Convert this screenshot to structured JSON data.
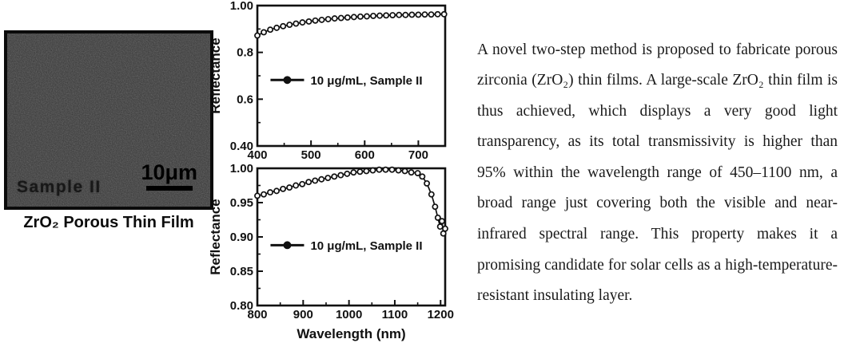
{
  "micrograph": {
    "sample_label": "Sample II",
    "scale_bar_label": "10μm",
    "caption": "ZrO₂ Porous Thin Film"
  },
  "text_panel": {
    "paragraph": "A novel two-step method is proposed to fabricate porous zirconia (ZrO₂) thin films. A large-scale ZrO₂ thin film is thus achieved, which displays a very good light transparency, as its total transmissivity is higher than 95% within the wavelength range of 450–1100 nm, a broad range just covering both the visible and near-infrared spectral range. This property makes it a promising candidate for solar cells as a high-temperature-resistant insulating layer."
  },
  "colors": {
    "ink": "#111111",
    "marker_fill": "#ffffff",
    "micrograph_bg": "#353535"
  },
  "chart_data": [
    {
      "type": "line",
      "title": "",
      "xlabel": "",
      "ylabel": "Reflectance",
      "legend": "10 μg/mL, Sample II",
      "legend_pos": {
        "fx": 0.07,
        "fy": 0.53
      },
      "xlim": [
        400,
        750
      ],
      "ylim": [
        0.4,
        1.0
      ],
      "xtick_values": [
        400,
        500,
        600,
        700
      ],
      "xtick_labels": [
        "400",
        "500",
        "600",
        "700"
      ],
      "xminor": [
        450,
        550,
        650,
        750
      ],
      "ytick_values": [
        1.0,
        0.8,
        0.6,
        0.4
      ],
      "ytick_labels": [
        "1.00",
        "0.8",
        "0.6",
        "0.40"
      ],
      "yminor": [
        0.9,
        0.7,
        0.5
      ],
      "grid": false,
      "series": [
        {
          "name": "10 μg/mL, Sample II",
          "x": [
            400,
            412,
            424,
            436,
            448,
            460,
            472,
            484,
            496,
            508,
            520,
            532,
            544,
            556,
            568,
            580,
            592,
            604,
            616,
            628,
            640,
            652,
            664,
            676,
            688,
            700,
            712,
            724,
            736,
            748
          ],
          "y": [
            0.872,
            0.886,
            0.897,
            0.905,
            0.912,
            0.918,
            0.923,
            0.928,
            0.932,
            0.936,
            0.939,
            0.942,
            0.945,
            0.947,
            0.949,
            0.951,
            0.953,
            0.954,
            0.956,
            0.957,
            0.958,
            0.959,
            0.96,
            0.96,
            0.961,
            0.961,
            0.962,
            0.962,
            0.963,
            0.963
          ]
        }
      ]
    },
    {
      "type": "line",
      "title": "",
      "xlabel": "Wavelength (nm)",
      "ylabel": "Reflectance",
      "legend": "10 μg/mL, Sample II",
      "legend_pos": {
        "fx": 0.07,
        "fy": 0.56
      },
      "xlim": [
        800,
        1210
      ],
      "ylim": [
        0.8,
        1.0
      ],
      "xtick_values": [
        800,
        900,
        1000,
        1100,
        1200
      ],
      "xtick_labels": [
        "800",
        "900",
        "1000",
        "1100",
        "1200"
      ],
      "xminor": [
        850,
        950,
        1050,
        1150
      ],
      "ytick_values": [
        1.0,
        0.95,
        0.9,
        0.85,
        0.8
      ],
      "ytick_labels": [
        "1.00",
        "0.95",
        "0.90",
        "0.85",
        "0.80"
      ],
      "yminor": [
        0.975,
        0.925,
        0.875,
        0.825
      ],
      "grid": false,
      "series": [
        {
          "name": "10 μg/mL, Sample II",
          "x": [
            800,
            814,
            828,
            842,
            856,
            870,
            884,
            898,
            912,
            926,
            940,
            954,
            968,
            982,
            996,
            1010,
            1024,
            1038,
            1052,
            1066,
            1080,
            1094,
            1108,
            1122,
            1136,
            1150,
            1160,
            1170,
            1180,
            1188,
            1194,
            1199,
            1203,
            1206,
            1210
          ],
          "y": [
            0.96,
            0.962,
            0.965,
            0.967,
            0.97,
            0.972,
            0.975,
            0.977,
            0.98,
            0.982,
            0.984,
            0.986,
            0.988,
            0.99,
            0.992,
            0.994,
            0.995,
            0.996,
            0.997,
            0.998,
            0.998,
            0.998,
            0.997,
            0.996,
            0.994,
            0.993,
            0.988,
            0.978,
            0.962,
            0.944,
            0.928,
            0.915,
            0.923,
            0.905,
            0.912
          ]
        }
      ]
    }
  ]
}
